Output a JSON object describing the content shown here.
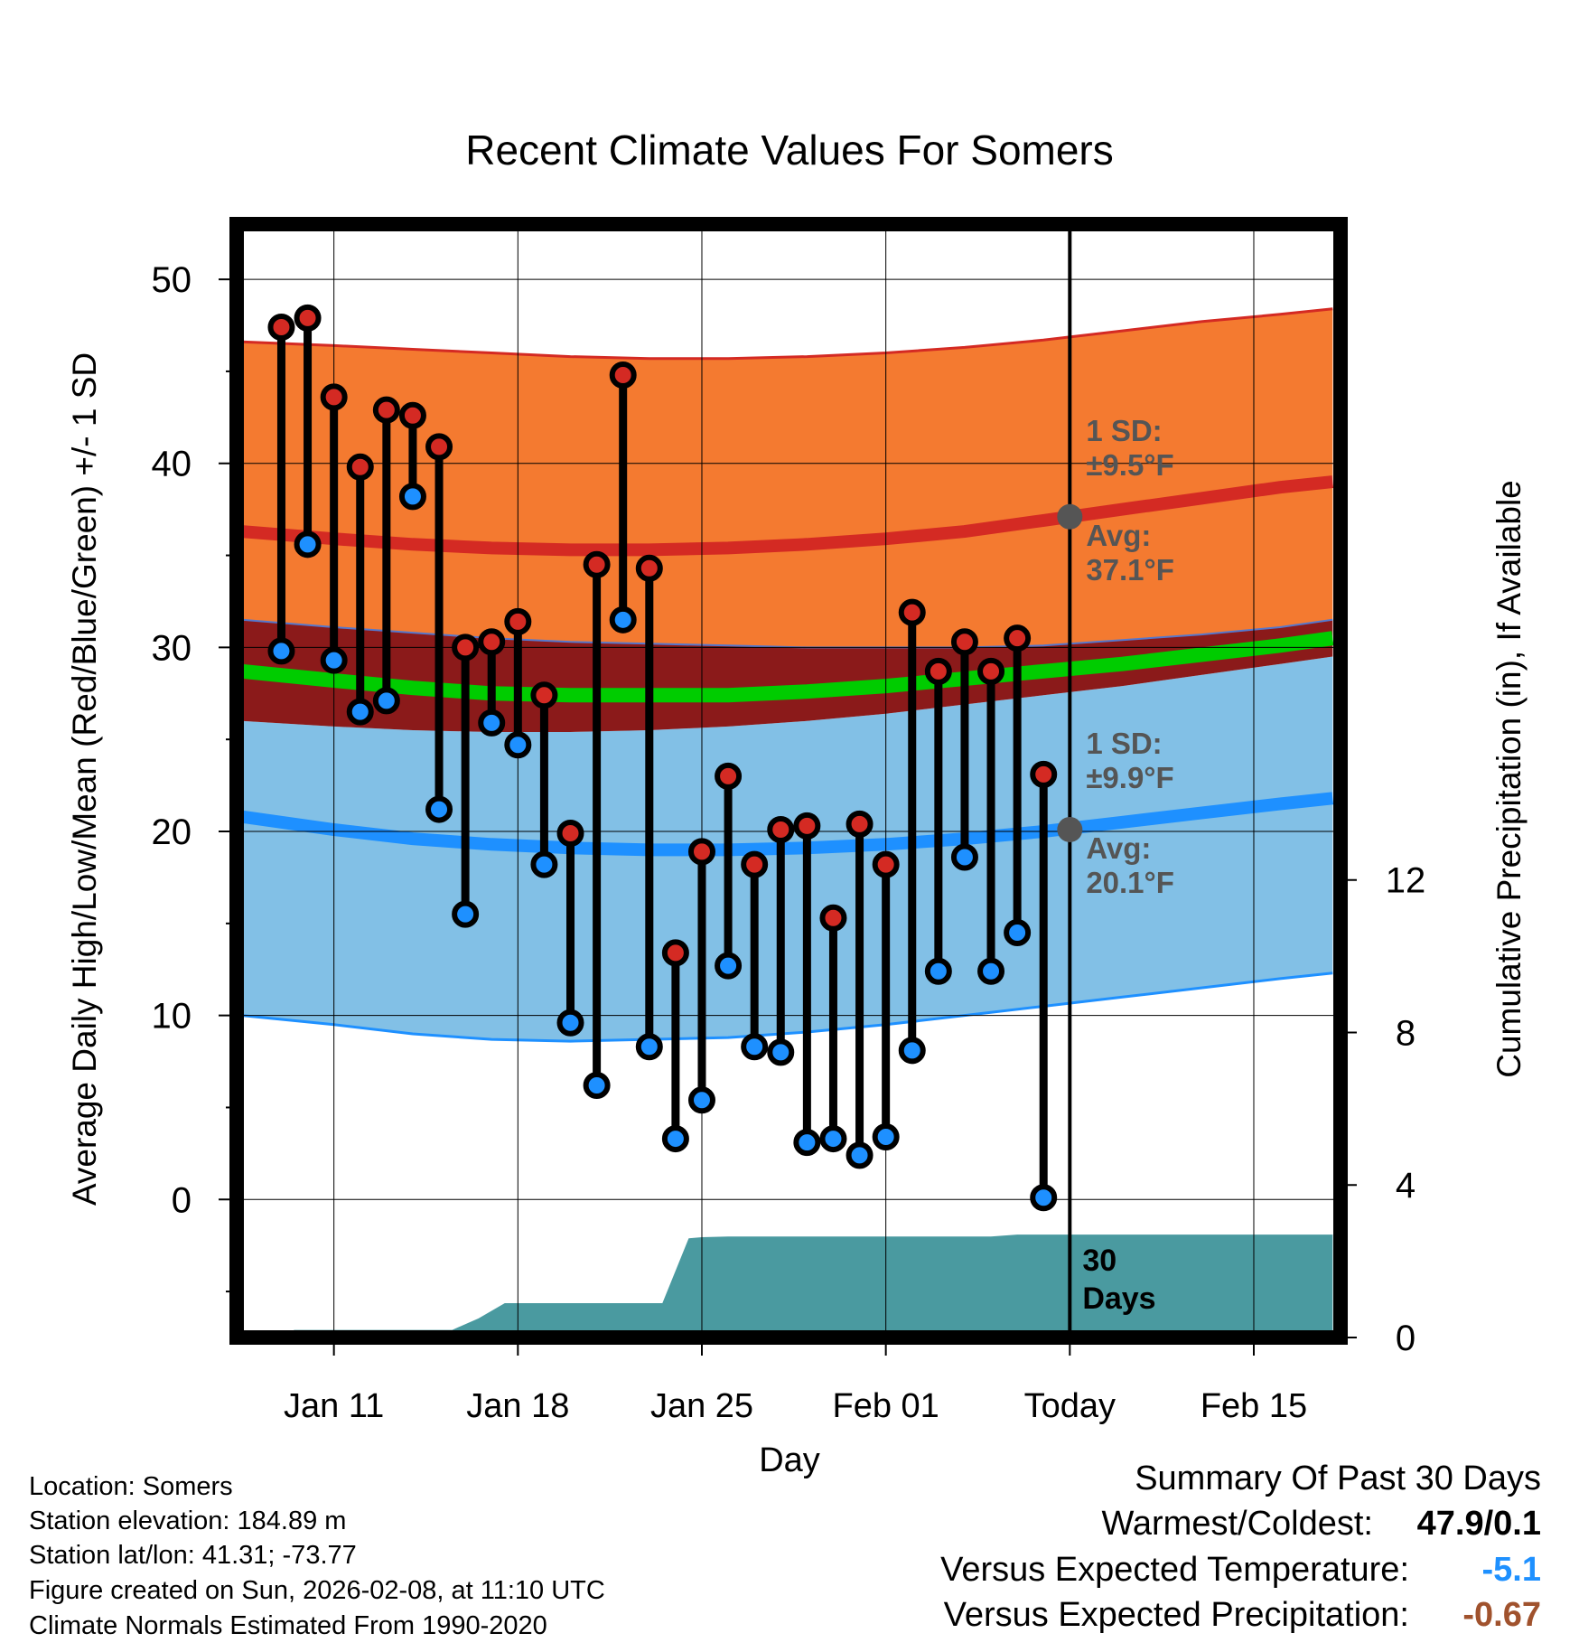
{
  "chart_data": {
    "type": "line",
    "title": "Recent Climate Values For Somers",
    "xlabel": "Day",
    "ylabel": "Average Daily High/Low/Mean (Red/Blue/Green) +/- 1 SD",
    "y2label": "Cumulative Precipitation (in), If Available",
    "ylim": [
      -7.5,
      53
    ],
    "y2lim": [
      0,
      29.2
    ],
    "xlim": [
      -0.7,
      41.3
    ],
    "y_ticks": [
      0,
      10,
      20,
      30,
      40,
      50
    ],
    "y2_ticks": [
      0,
      4,
      8,
      12
    ],
    "x_ticks": [
      {
        "day": 3,
        "label": "Jan 11"
      },
      {
        "day": 10,
        "label": "Jan 18"
      },
      {
        "day": 17,
        "label": "Jan 25"
      },
      {
        "day": 24,
        "label": "Feb 01"
      },
      {
        "day": 31,
        "label": "Today"
      },
      {
        "day": 38,
        "label": "Feb 15"
      }
    ],
    "today_day": 31,
    "today_label": [
      "30",
      "Days"
    ],
    "high_series": [
      47.4,
      47.9,
      43.6,
      39.8,
      42.9,
      42.6,
      40.9,
      30.0,
      30.3,
      31.4,
      27.4,
      19.9,
      34.5,
      44.8,
      34.3,
      13.4,
      18.9,
      23.0,
      18.2,
      20.1,
      20.3,
      15.3,
      20.4,
      18.2,
      31.9,
      28.7,
      30.3,
      28.7,
      30.5,
      23.1
    ],
    "low_series": [
      29.8,
      35.6,
      29.3,
      26.5,
      27.1,
      38.2,
      21.2,
      15.5,
      25.9,
      24.7,
      18.2,
      9.6,
      6.2,
      31.5,
      8.3,
      3.3,
      5.4,
      12.7,
      8.3,
      8.0,
      3.1,
      3.3,
      2.4,
      3.4,
      8.1,
      12.4,
      18.6,
      12.4,
      14.5,
      0.1
    ],
    "obs_start_day": 1,
    "normal_days": [
      -0.5,
      3,
      6,
      9,
      12,
      15,
      18,
      21,
      24,
      27,
      30,
      33,
      36,
      39,
      41
    ],
    "normal_high": [
      36.3,
      35.9,
      35.6,
      35.4,
      35.3,
      35.3,
      35.4,
      35.6,
      35.9,
      36.3,
      36.9,
      37.5,
      38.1,
      38.7,
      39.0
    ],
    "normal_high_sd_upper": [
      46.6,
      46.4,
      46.2,
      46.0,
      45.8,
      45.7,
      45.7,
      45.8,
      46.0,
      46.3,
      46.7,
      47.2,
      47.7,
      48.1,
      48.4
    ],
    "normal_high_sd_lower": [
      31.5,
      31.1,
      30.8,
      30.5,
      30.3,
      30.2,
      30.1,
      30.0,
      30.0,
      30.0,
      30.1,
      30.4,
      30.7,
      31.1,
      31.5
    ],
    "normal_low": [
      20.8,
      20.1,
      19.6,
      19.3,
      19.1,
      19.0,
      19.0,
      19.1,
      19.3,
      19.6,
      20.0,
      20.5,
      21.0,
      21.5,
      21.8
    ],
    "normal_low_sd_upper": [
      26.0,
      25.7,
      25.5,
      25.4,
      25.4,
      25.5,
      25.7,
      26.0,
      26.4,
      26.9,
      27.4,
      27.9,
      28.5,
      29.1,
      29.5
    ],
    "normal_low_sd_lower": [
      10.0,
      9.5,
      9.0,
      8.7,
      8.6,
      8.7,
      8.8,
      9.1,
      9.5,
      10.0,
      10.5,
      11.0,
      11.5,
      12.0,
      12.3
    ],
    "normal_mean": [
      28.7,
      28.2,
      27.8,
      27.5,
      27.4,
      27.4,
      27.4,
      27.6,
      27.9,
      28.3,
      28.7,
      29.1,
      29.6,
      30.1,
      30.5
    ],
    "precip_days": [
      0.5,
      1.5,
      3,
      4,
      5,
      6,
      7,
      7.5,
      8.5,
      9.5,
      10,
      11,
      12,
      13,
      14,
      15,
      15.5,
      16.5,
      17,
      18,
      19,
      20,
      21,
      22,
      23,
      24,
      25,
      26,
      27,
      28,
      29,
      30,
      31,
      32,
      41
    ],
    "precip_cum": [
      0,
      0.2,
      0.2,
      0.2,
      0.2,
      0.2,
      0.2,
      0.2,
      0.5,
      0.9,
      0.9,
      0.9,
      0.9,
      0.9,
      0.9,
      0.9,
      0.9,
      2.6,
      2.63,
      2.65,
      2.65,
      2.65,
      2.65,
      2.65,
      2.65,
      2.65,
      2.65,
      2.65,
      2.65,
      2.65,
      2.7,
      2.7,
      2.7,
      2.7,
      2.7
    ],
    "annotations": {
      "high_sd_label": [
        "1 SD:",
        "±9.5°F"
      ],
      "high_avg_label": [
        "Avg:",
        "37.1°F"
      ],
      "high_avg_value": 37.1,
      "low_sd_label": [
        "1 SD:",
        "±9.9°F"
      ],
      "low_avg_label": [
        "Avg:",
        "20.1°F"
      ],
      "low_avg_value": 20.1
    },
    "colors": {
      "high_band": "#f47a30",
      "high_line": "#d42a23",
      "low_band": "#82c0e6",
      "low_line": "#1e90ff",
      "overlap": "#8b1a1a",
      "mean_line": "#00cc00",
      "precip": "#4a9aa0",
      "high_marker": "#d42a23",
      "low_marker": "#1e90ff",
      "annotation": "#555555"
    }
  },
  "metadata": {
    "location": "Location: Somers",
    "elevation": "Station elevation: 184.89 m",
    "latlon": "Station lat/lon: 41.31; -73.77",
    "created": "Figure created on Sun, 2026-02-08, at 11:10 UTC",
    "normals": "Climate Normals Estimated From 1990-2020"
  },
  "summary": {
    "title": "Summary Of Past 30 Days",
    "warmest_label": "Warmest/Coldest:",
    "warmest_value": "47.9/0.1",
    "temp_label": "Versus Expected Temperature:",
    "temp_value": "-5.1",
    "temp_color": "#1e90ff",
    "precip_label": "Versus Expected Precipitation:",
    "precip_value": "-0.67",
    "precip_color": "#a0522d"
  }
}
